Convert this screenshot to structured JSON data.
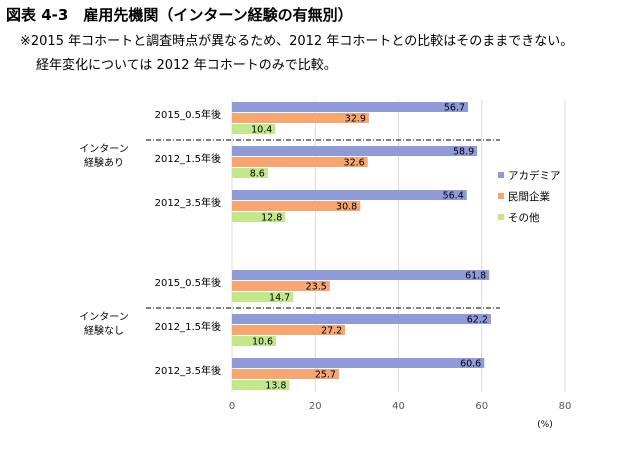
{
  "header": {
    "title": "図表 4-3　雇用先機関（インターン経験の有無別）",
    "note1": "※2015 年コホートと調査時点が異なるため、2012 年コホートとの比較はそのままできない。",
    "note2": "経年変化については 2012 年コホートのみで比較。"
  },
  "chart_data": {
    "type": "bar",
    "orientation": "horizontal",
    "xlim": [
      0,
      80
    ],
    "xticks": [
      "0",
      "20",
      "40",
      "60",
      "80"
    ],
    "unit_label": "(%)",
    "grid": true,
    "legend_position": "right",
    "series": [
      {
        "name": "アカデミア",
        "color": "#8F9BD9"
      },
      {
        "name": "民間企業",
        "color": "#F7A66F"
      },
      {
        "name": "その他",
        "color": "#C2E88B"
      }
    ],
    "groups": [
      {
        "label_lines": [
          "インターン",
          "経験あり"
        ],
        "categories": [
          {
            "label": "2015_0.5年後",
            "values": [
              56.7,
              32.9,
              10.4
            ],
            "value_labels": [
              "56.7",
              "32.9",
              "10.4"
            ]
          },
          {
            "label": "2012_1.5年後",
            "values": [
              58.9,
              32.6,
              8.6
            ],
            "value_labels": [
              "58.9",
              "32.6",
              "8.6"
            ]
          },
          {
            "label": "2012_3.5年後",
            "values": [
              56.4,
              30.8,
              12.8
            ],
            "value_labels": [
              "56.4",
              "30.8",
              "12.8"
            ]
          }
        ]
      },
      {
        "label_lines": [
          "インターン",
          "経験なし"
        ],
        "categories": [
          {
            "label": "2015_0.5年後",
            "values": [
              61.8,
              23.5,
              14.7
            ],
            "value_labels": [
              "61.8",
              "23.5",
              "14.7"
            ]
          },
          {
            "label": "2012_1.5年後",
            "values": [
              62.2,
              27.2,
              10.6
            ],
            "value_labels": [
              "62.2",
              "27.2",
              "10.6"
            ]
          },
          {
            "label": "2012_3.5年後",
            "values": [
              60.6,
              25.7,
              13.8
            ],
            "value_labels": [
              "60.6",
              "25.7",
              "13.8"
            ]
          }
        ]
      }
    ]
  }
}
